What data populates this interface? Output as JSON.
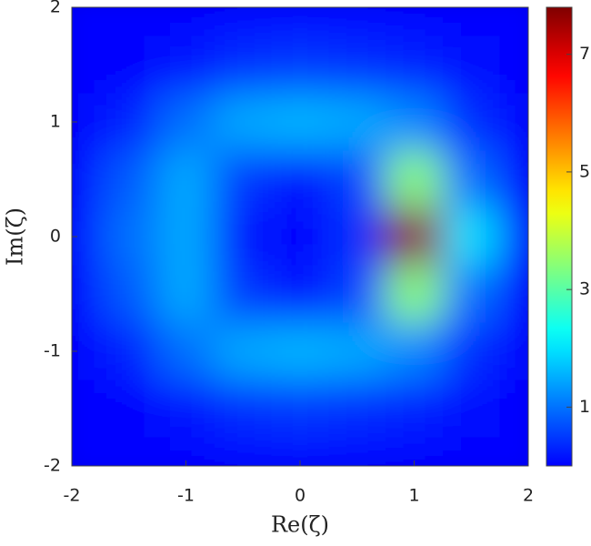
{
  "chart_data": {
    "type": "heatmap",
    "x_label": "Re(ζ)",
    "y_label": "Im(ζ)",
    "x": [
      -2,
      -1.5,
      -1,
      -0.5,
      0,
      0.5,
      1,
      1.5,
      2
    ],
    "y": [
      2,
      1.5,
      1,
      0.5,
      0,
      -0.5,
      -1,
      -1.5,
      -2
    ],
    "values": [
      [
        0,
        0,
        0,
        0,
        0,
        0,
        0,
        0,
        0
      ],
      [
        0,
        0,
        0.2,
        0.4,
        0.5,
        0.4,
        0.3,
        0.1,
        0
      ],
      [
        0,
        0.3,
        1.0,
        1.5,
        1.6,
        1.5,
        1.2,
        0.4,
        0
      ],
      [
        0,
        0.8,
        1.5,
        0.5,
        0.2,
        0.6,
        3.5,
        1.0,
        0
      ],
      [
        0,
        1.0,
        1.5,
        0.2,
        0,
        0.4,
        7.8,
        2.0,
        0
      ],
      [
        0,
        0.8,
        1.5,
        0.5,
        0.2,
        0.6,
        3.5,
        1.0,
        0
      ],
      [
        0,
        0.3,
        1.0,
        1.5,
        1.6,
        1.5,
        1.2,
        0.4,
        0
      ],
      [
        0,
        0,
        0.2,
        0.4,
        0.5,
        0.4,
        0.3,
        0.1,
        0
      ],
      [
        0,
        0,
        0,
        0,
        0,
        0,
        0,
        0,
        0
      ]
    ],
    "colormap": "jet",
    "xlim": [
      -2,
      2
    ],
    "ylim": [
      -2,
      2
    ],
    "xticks": [
      -2,
      -1,
      0,
      1,
      2
    ],
    "yticks": [
      -2,
      -1,
      0,
      1,
      2
    ],
    "clim": [
      0,
      7.8
    ],
    "cticks": [
      1,
      3,
      5,
      7
    ]
  }
}
